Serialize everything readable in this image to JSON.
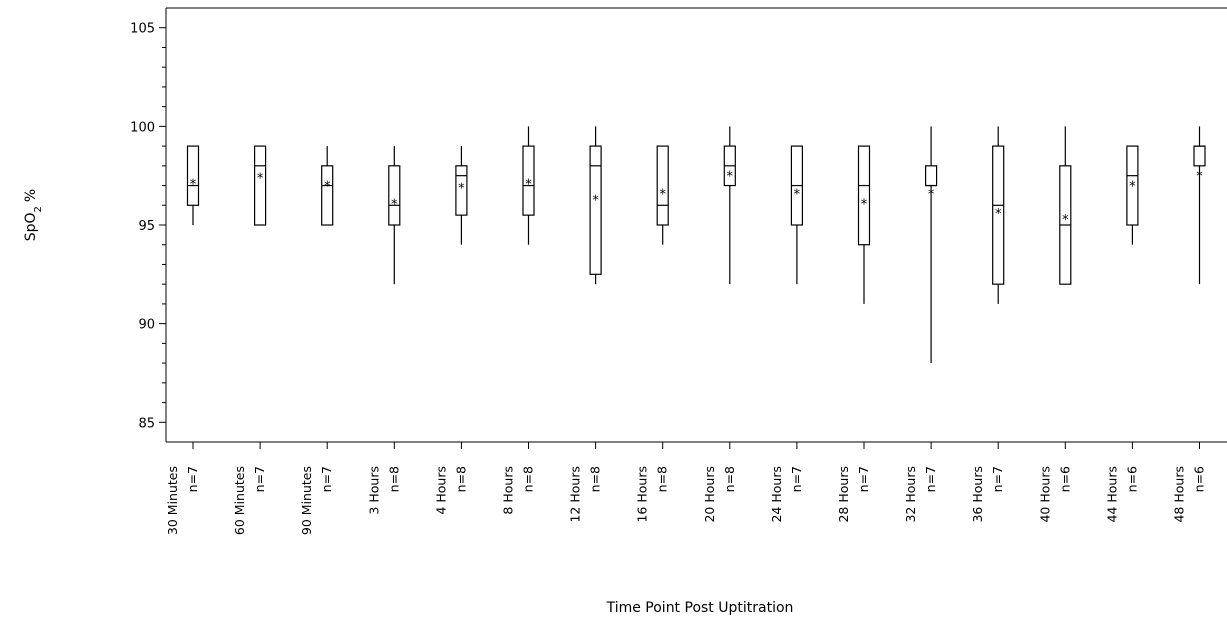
{
  "chart_data": {
    "type": "box",
    "xlabel": "Time Point Post Uptitration",
    "ylabel": {
      "main": "SpO",
      "subscript": "2",
      "unit": "%"
    },
    "ylim": [
      84,
      106
    ],
    "yticks": [
      85,
      90,
      95,
      100,
      105
    ],
    "grid": false,
    "legend": "none",
    "categories": [
      {
        "label": "30 Minutes",
        "n": "n=7",
        "min": 95,
        "q1": 96,
        "median": 97,
        "q3": 99,
        "max": 99,
        "mean": 97.1
      },
      {
        "label": "60 Minutes",
        "n": "n=7",
        "min": 95,
        "q1": 95,
        "median": 98,
        "q3": 99,
        "max": 99,
        "mean": 97.4
      },
      {
        "label": "90 Minutes",
        "n": "n=7",
        "min": 95,
        "q1": 95,
        "median": 97,
        "q3": 98,
        "max": 99,
        "mean": 97.0
      },
      {
        "label": "3 Hours",
        "n": "n=8",
        "min": 92,
        "q1": 95,
        "median": 96,
        "q3": 98,
        "max": 99,
        "mean": 96.1
      },
      {
        "label": "4 Hours",
        "n": "n=8",
        "min": 94,
        "q1": 95.5,
        "median": 97.5,
        "q3": 98,
        "max": 99,
        "mean": 96.9
      },
      {
        "label": "8 Hours",
        "n": "n=8",
        "min": 94,
        "q1": 95.5,
        "median": 97,
        "q3": 99,
        "max": 100,
        "mean": 97.1
      },
      {
        "label": "12 Hours",
        "n": "n=8",
        "min": 92,
        "q1": 92.5,
        "median": 98,
        "q3": 99,
        "max": 100,
        "mean": 96.3
      },
      {
        "label": "16 Hours",
        "n": "n=8",
        "min": 94,
        "q1": 95,
        "median": 96,
        "q3": 99,
        "max": 99,
        "mean": 96.6
      },
      {
        "label": "20 Hours",
        "n": "n=8",
        "min": 92,
        "q1": 97,
        "median": 98,
        "q3": 99,
        "max": 100,
        "mean": 97.5
      },
      {
        "label": "24 Hours",
        "n": "n=7",
        "min": 92,
        "q1": 95,
        "median": 97,
        "q3": 99,
        "max": 99,
        "mean": 96.6
      },
      {
        "label": "28 Hours",
        "n": "n=7",
        "min": 91,
        "q1": 94,
        "median": 97,
        "q3": 99,
        "max": 99,
        "mean": 96.1
      },
      {
        "label": "32 Hours",
        "n": "n=7",
        "min": 88,
        "q1": 97,
        "median": 97,
        "q3": 98,
        "max": 100,
        "mean": 96.6
      },
      {
        "label": "36 Hours",
        "n": "n=7",
        "min": 91,
        "q1": 92,
        "median": 96,
        "q3": 99,
        "max": 100,
        "mean": 95.6
      },
      {
        "label": "40 Hours",
        "n": "n=6",
        "min": 92,
        "q1": 92,
        "median": 95,
        "q3": 98,
        "max": 100,
        "mean": 95.3
      },
      {
        "label": "44 Hours",
        "n": "n=6",
        "min": 94,
        "q1": 95,
        "median": 97.5,
        "q3": 99,
        "max": 99,
        "mean": 97.0
      },
      {
        "label": "48 Hours",
        "n": "n=6",
        "min": 92,
        "q1": 98,
        "median": 99,
        "q3": 99,
        "max": 100,
        "mean": 97.5
      }
    ]
  }
}
